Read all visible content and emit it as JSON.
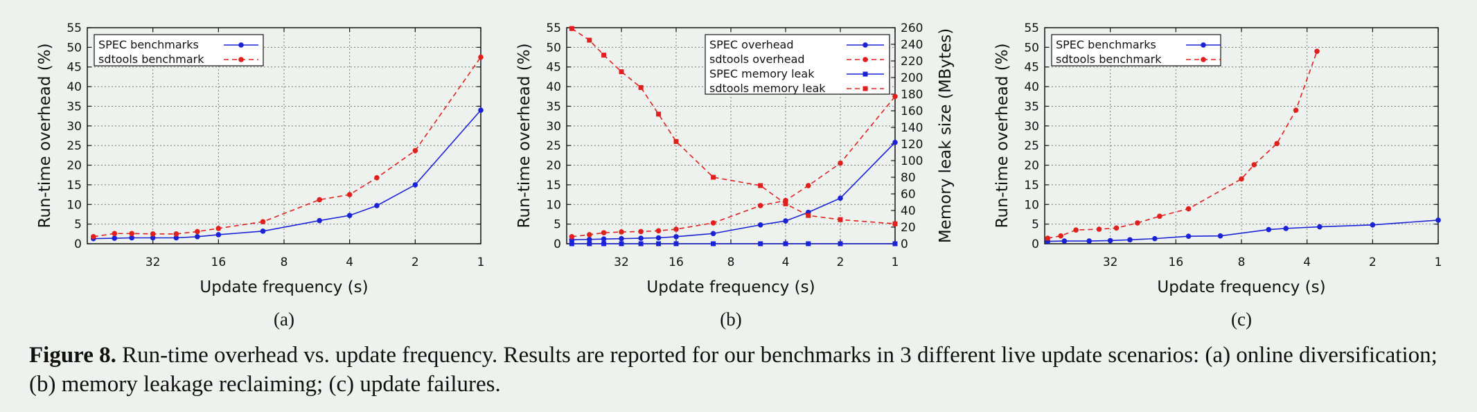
{
  "figure": {
    "caption_label": "Figure 8.",
    "caption_text": "Run-time overhead vs. update frequency. Results are reported for our benchmarks in 3 different live update scenarios: (a) online diversification; (b) memory leakage reclaiming; (c) update failures."
  },
  "colors": {
    "blue": "#1a22d6",
    "red": "#e0201c",
    "grid": "#777777"
  },
  "chart_data": [
    {
      "type": "line",
      "sublabel": "(a)",
      "xlabel": "Update frequency (s)",
      "ylabel": "Run-time overhead (%)",
      "x_scale": "log2-reversed",
      "xlim": [
        64,
        1
      ],
      "xticks": [
        32,
        16,
        8,
        4,
        2,
        1
      ],
      "ylim": [
        0,
        55
      ],
      "yticks": [
        0,
        5,
        10,
        15,
        20,
        25,
        30,
        35,
        40,
        45,
        50,
        55
      ],
      "grid": true,
      "legend_position": "top-left",
      "series": [
        {
          "name": "SPEC benchmarks",
          "color": "#1a22d6",
          "dash": "solid",
          "marker": "circle",
          "x": [
            60,
            48,
            40,
            32,
            25,
            20,
            16,
            10,
            5.5,
            4,
            3,
            2,
            1
          ],
          "y": [
            1.3,
            1.4,
            1.5,
            1.5,
            1.5,
            1.8,
            2.3,
            3.2,
            5.9,
            7.2,
            9.7,
            15,
            34
          ]
        },
        {
          "name": "sdtools benchmark",
          "color": "#e0201c",
          "dash": "dashed",
          "marker": "circle",
          "x": [
            60,
            48,
            40,
            32,
            25,
            20,
            16,
            10,
            5.5,
            4,
            3,
            2,
            1
          ],
          "y": [
            1.8,
            2.6,
            2.6,
            2.5,
            2.5,
            3.1,
            3.9,
            5.6,
            11.2,
            12.5,
            16.8,
            23.7,
            47.5
          ]
        }
      ]
    },
    {
      "type": "line",
      "sublabel": "(b)",
      "xlabel": "Update frequency (s)",
      "ylabel": "Run-time overhead (%)",
      "y2label": "Memory leak size (MBytes)",
      "x_scale": "log2-reversed",
      "xlim": [
        64,
        1
      ],
      "xticks": [
        32,
        16,
        8,
        4,
        2,
        1
      ],
      "ylim": [
        0,
        55
      ],
      "yticks": [
        0,
        5,
        10,
        15,
        20,
        25,
        30,
        35,
        40,
        45,
        50,
        55
      ],
      "y2lim": [
        0,
        260
      ],
      "y2ticks": [
        0,
        20,
        40,
        60,
        80,
        100,
        120,
        140,
        160,
        180,
        200,
        220,
        240,
        260
      ],
      "grid": true,
      "legend_position": "top-right",
      "series": [
        {
          "name": "SPEC overhead",
          "color": "#1a22d6",
          "dash": "solid",
          "marker": "circle",
          "axis": "left",
          "x": [
            60,
            48,
            40,
            32,
            25,
            20,
            16,
            10,
            5.5,
            4,
            3,
            2,
            1
          ],
          "y": [
            1.0,
            1.1,
            1.2,
            1.3,
            1.4,
            1.5,
            1.8,
            2.6,
            4.8,
            5.8,
            8.0,
            11.6,
            25.8
          ]
        },
        {
          "name": "sdtools overhead",
          "color": "#e0201c",
          "dash": "dashed",
          "marker": "circle",
          "axis": "left",
          "x": [
            60,
            48,
            40,
            32,
            25,
            20,
            16,
            10,
            5.5,
            4,
            3,
            2,
            1
          ],
          "y": [
            1.8,
            2.3,
            2.8,
            3.0,
            3.1,
            3.3,
            3.7,
            5.3,
            9.7,
            11.0,
            14.8,
            20.5,
            37.5
          ]
        },
        {
          "name": "SPEC memory leak",
          "color": "#1a22d6",
          "dash": "solid",
          "marker": "square",
          "axis": "right",
          "x": [
            60,
            48,
            40,
            32,
            25,
            20,
            16,
            10,
            5.5,
            4,
            3,
            2,
            1
          ],
          "y": [
            0,
            0,
            0,
            0,
            0,
            0,
            0,
            0,
            0,
            0,
            0,
            0,
            0
          ]
        },
        {
          "name": "sdtools memory leak",
          "color": "#e0201c",
          "dash": "dashed",
          "marker": "square",
          "axis": "right",
          "x": [
            60,
            48,
            40,
            32,
            25,
            20,
            16,
            10,
            5.5,
            4,
            3,
            2,
            1
          ],
          "y": [
            259,
            245,
            227,
            207,
            188,
            156,
            123,
            80,
            70,
            48,
            34,
            29,
            24
          ]
        }
      ]
    },
    {
      "type": "line",
      "sublabel": "(c)",
      "xlabel": "Update frequency (s)",
      "ylabel": "Run-time overhead (%)",
      "x_scale": "log2-reversed",
      "xlim": [
        64,
        1
      ],
      "xticks": [
        32,
        16,
        8,
        4,
        2,
        1
      ],
      "ylim": [
        0,
        55
      ],
      "yticks": [
        0,
        5,
        10,
        15,
        20,
        25,
        30,
        35,
        40,
        45,
        50,
        55
      ],
      "grid": true,
      "legend_position": "top-left",
      "series": [
        {
          "name": "SPEC benchmarks",
          "color": "#1a22d6",
          "dash": "solid",
          "marker": "circle",
          "x": [
            62,
            52,
            40,
            32,
            26,
            20,
            14,
            10,
            6,
            5,
            3.5,
            2,
            1
          ],
          "y": [
            0.6,
            0.7,
            0.7,
            0.8,
            1.0,
            1.3,
            1.9,
            2.0,
            3.6,
            3.9,
            4.3,
            4.8,
            6.0
          ]
        },
        {
          "name": "sdtools benchmark",
          "color": "#e0201c",
          "dash": "dashed",
          "marker": "circle",
          "x": [
            62,
            54,
            46,
            36,
            30,
            24,
            19,
            14,
            8,
            7,
            5.5,
            4.5,
            3.6
          ],
          "y": [
            1.4,
            2.0,
            3.5,
            3.7,
            4.0,
            5.3,
            7.0,
            8.9,
            16.5,
            20.1,
            25.5,
            34,
            49
          ]
        }
      ]
    }
  ]
}
